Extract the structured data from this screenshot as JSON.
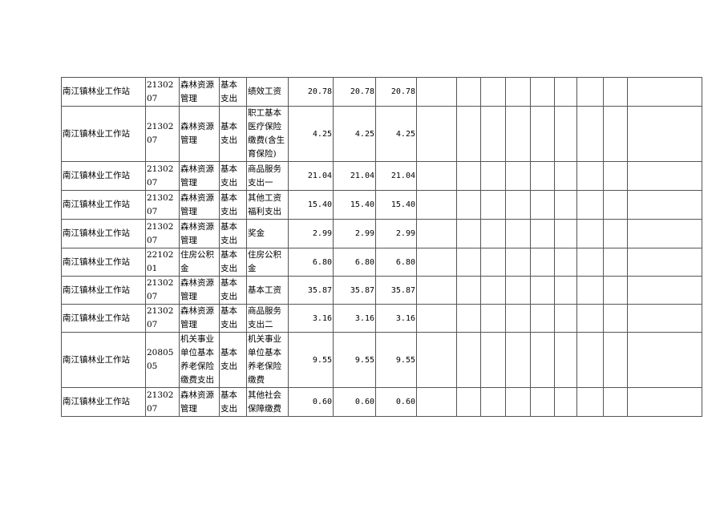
{
  "rows": [
    {
      "unit": "南江镇林业工作站",
      "code": "2130207",
      "category": "森林资源管理",
      "type": "基本支出",
      "item": "绩效工资",
      "v1": "20.78",
      "v2": "20.78",
      "v3": "20.78"
    },
    {
      "unit": "南江镇林业工作站",
      "code": "2130207",
      "category": "森林资源管理",
      "type": "基本支出",
      "item": "职工基本医疗保险缴费(含生育保险)",
      "v1": "4.25",
      "v2": "4.25",
      "v3": "4.25"
    },
    {
      "unit": "南江镇林业工作站",
      "code": "2130207",
      "category": "森林资源管理",
      "type": "基本支出",
      "item": "商品服务支出一",
      "v1": "21.04",
      "v2": "21.04",
      "v3": "21.04"
    },
    {
      "unit": "南江镇林业工作站",
      "code": "2130207",
      "category": "森林资源管理",
      "type": "基本支出",
      "item": "其他工资福利支出",
      "v1": "15.40",
      "v2": "15.40",
      "v3": "15.40"
    },
    {
      "unit": "南江镇林业工作站",
      "code": "2130207",
      "category": "森林资源管理",
      "type": "基本支出",
      "item": "奖金",
      "v1": "2.99",
      "v2": "2.99",
      "v3": "2.99"
    },
    {
      "unit": "南江镇林业工作站",
      "code": "2210201",
      "category": "住房公积金",
      "type": "基本支出",
      "item": "住房公积金",
      "v1": "6.80",
      "v2": "6.80",
      "v3": "6.80"
    },
    {
      "unit": "南江镇林业工作站",
      "code": "2130207",
      "category": "森林资源管理",
      "type": "基本支出",
      "item": "基本工资",
      "v1": "35.87",
      "v2": "35.87",
      "v3": "35.87"
    },
    {
      "unit": "南江镇林业工作站",
      "code": "2130207",
      "category": "森林资源管理",
      "type": "基本支出",
      "item": "商品服务支出二",
      "v1": "3.16",
      "v2": "3.16",
      "v3": "3.16"
    },
    {
      "unit": "南江镇林业工作站",
      "code": "2080505",
      "category": "机关事业单位基本养老保险缴费支出",
      "type": "基本支出",
      "item": "机关事业单位基本养老保险缴费",
      "v1": "9.55",
      "v2": "9.55",
      "v3": "9.55"
    },
    {
      "unit": "南江镇林业工作站",
      "code": "2130207",
      "category": "森林资源管理",
      "type": "基本支出",
      "item": "其他社会保障缴费",
      "v1": "0.60",
      "v2": "0.60",
      "v3": "0.60"
    }
  ]
}
